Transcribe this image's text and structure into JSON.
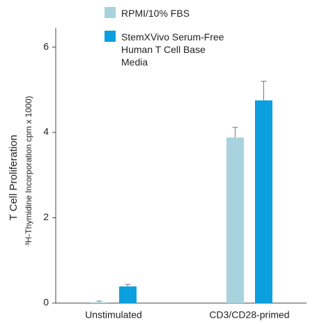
{
  "chart_data": {
    "type": "bar",
    "ylabel": "T Cell Proliferation",
    "ylabel_sub": "³H-Thymidine Incorporation cpm x 1000)",
    "categories": [
      "Unstimulated",
      "CD3/CD28-primed"
    ],
    "series": [
      {
        "name": "RPMI/10% FBS",
        "color": "#a8d3dc",
        "values": [
          0.02,
          3.88
        ],
        "errors": [
          0.03,
          0.24
        ]
      },
      {
        "name": "StemXVivo Serum-Free Human T Cell Base Media",
        "color": "#0b9fe0",
        "values": [
          0.39,
          4.75
        ],
        "errors": [
          0.05,
          0.45
        ]
      }
    ],
    "ylim": [
      0,
      6.45
    ],
    "yticks": [
      0,
      2,
      4,
      6
    ],
    "legend": "top"
  }
}
